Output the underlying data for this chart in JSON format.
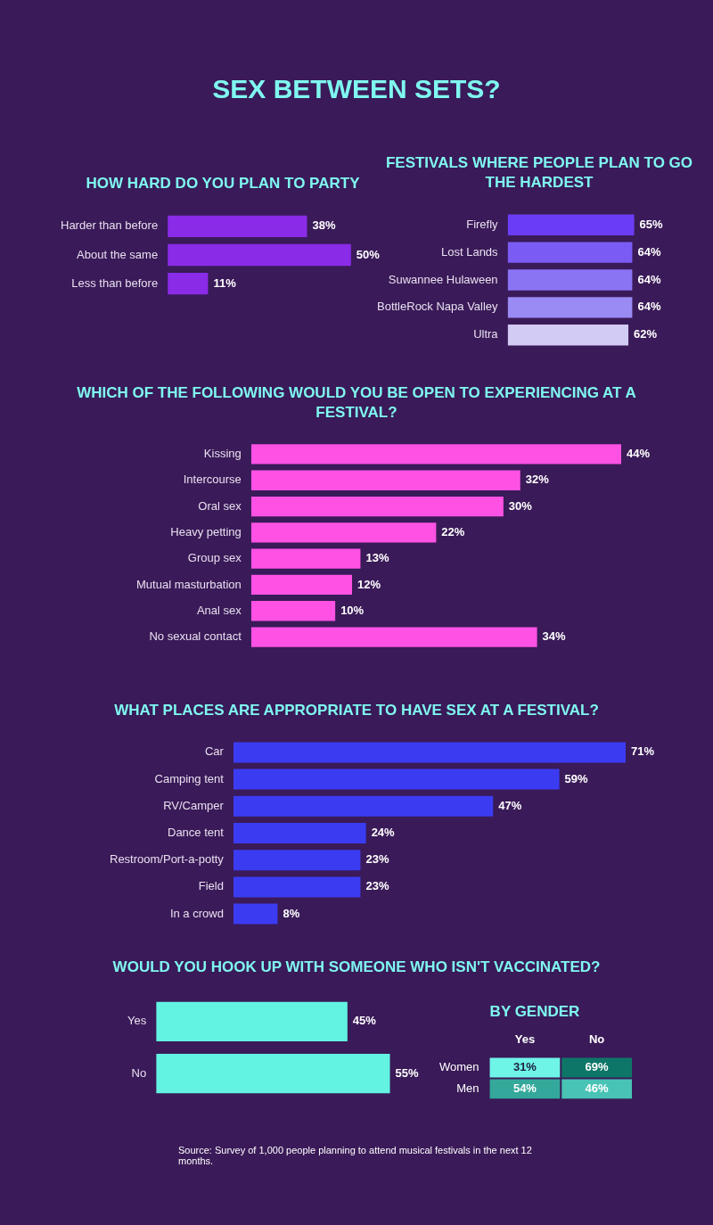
{
  "chart_data": [
    {
      "type": "other",
      "title": "SEX BETWEEN SETS?"
    },
    {
      "type": "bar",
      "orientation": "horizontal",
      "title": "HOW HARD DO YOU PLAN TO PARTY",
      "categories": [
        "Harder than before",
        "About the same",
        "Less than before"
      ],
      "values": [
        38,
        50,
        11
      ],
      "value_labels": [
        "38%",
        "50%",
        "11%"
      ],
      "color": "#8a2be8"
    },
    {
      "type": "bar",
      "orientation": "horizontal",
      "title": "FESTIVALS WHERE PEOPLE PLAN TO GO THE HARDEST",
      "categories": [
        "Firefly",
        "Lost Lands",
        "Suwannee Hulaween",
        "BottleRock Napa Valley",
        "Ultra"
      ],
      "values": [
        65,
        64,
        64,
        64,
        62
      ],
      "value_labels": [
        "65%",
        "64%",
        "64%",
        "64%",
        "62%"
      ],
      "colors": [
        "#6a3cf6",
        "#7a5cf5",
        "#8a74f4",
        "#9a8af4",
        "#d2cbf4"
      ]
    },
    {
      "type": "bar",
      "orientation": "horizontal",
      "title": "WHICH OF THE FOLLOWING WOULD YOU BE OPEN TO EXPERIENCING AT A FESTIVAL?",
      "categories": [
        "Kissing",
        "Intercourse",
        "Oral sex",
        "Heavy petting",
        "Group sex",
        "Mutual masturbation",
        "Anal sex",
        "No sexual contact"
      ],
      "values": [
        44,
        32,
        30,
        22,
        13,
        12,
        10,
        34
      ],
      "value_labels": [
        "44%",
        "32%",
        "30%",
        "22%",
        "13%",
        "12%",
        "10%",
        "34%"
      ],
      "color": "#ff52e4"
    },
    {
      "type": "bar",
      "orientation": "horizontal",
      "title": "WHAT PLACES ARE APPROPRIATE TO HAVE SEX AT A FESTIVAL?",
      "categories": [
        "Car",
        "Camping tent",
        "RV/Camper",
        "Dance tent",
        "Restroom/Port-a-potty",
        "Field",
        "In a crowd"
      ],
      "values": [
        71,
        59,
        47,
        24,
        23,
        23,
        8
      ],
      "value_labels": [
        "71%",
        "59%",
        "47%",
        "24%",
        "23%",
        "23%",
        "8%"
      ],
      "color": "#3b3cf2"
    },
    {
      "type": "bar",
      "orientation": "horizontal",
      "title": "WOULD YOU HOOK UP WITH SOMEONE WHO ISN'T VACCINATED?",
      "categories": [
        "Yes",
        "No"
      ],
      "values": [
        45,
        55
      ],
      "value_labels": [
        "45%",
        "55%"
      ],
      "color": "#62f3e2"
    },
    {
      "type": "heatmap",
      "title": "BY GENDER",
      "categories": [
        "Yes",
        "No"
      ],
      "y_categories": [
        "Women",
        "Men"
      ],
      "cells": [
        [
          31,
          69
        ],
        [
          54,
          46
        ]
      ],
      "cell_labels": [
        [
          "31%",
          "69%"
        ],
        [
          "54%",
          "46%"
        ]
      ]
    },
    {
      "type": "other",
      "annotations": [
        "Source: Survey of 1,000 people planning to attend musical festivals in the next 12 months."
      ]
    }
  ]
}
